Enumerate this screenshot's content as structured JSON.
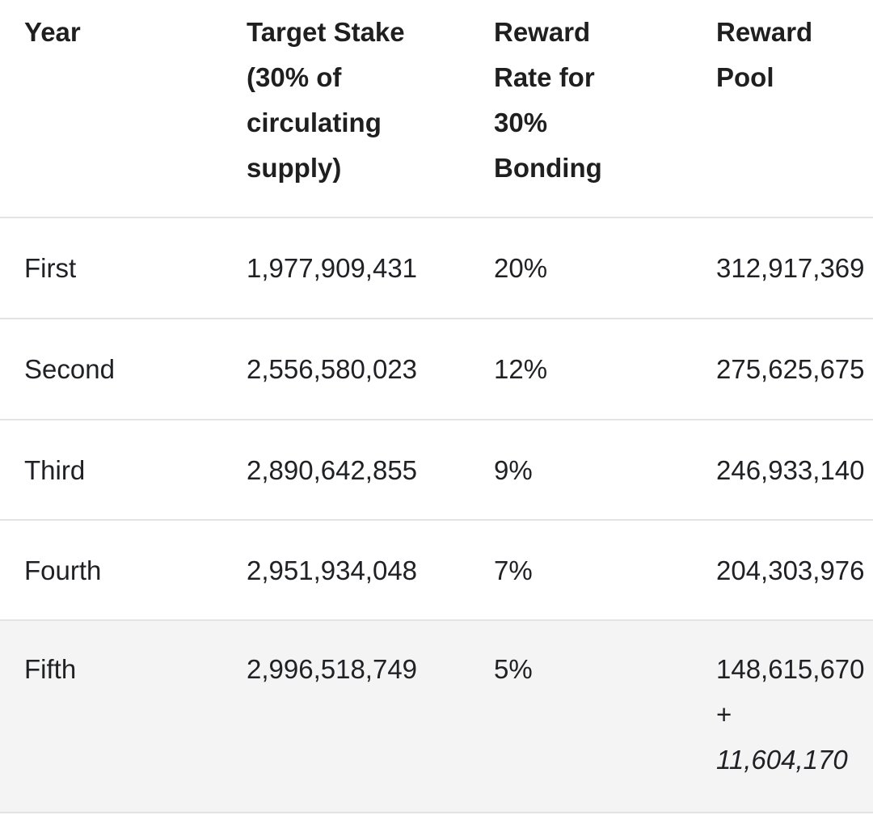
{
  "table": {
    "headers": [
      [
        "Year"
      ],
      [
        "Target Stake",
        "(30% of",
        "circulating",
        "supply)"
      ],
      [
        "Reward",
        "Rate for",
        "30%",
        "Bonding"
      ],
      [
        "Reward",
        "Pool"
      ]
    ],
    "rows": [
      {
        "year": "First",
        "target_stake": "1,977,909,431",
        "reward_rate": "20%",
        "reward_pool": "312,917,369"
      },
      {
        "year": "Second",
        "target_stake": "2,556,580,023",
        "reward_rate": "12%",
        "reward_pool": "275,625,675"
      },
      {
        "year": "Third",
        "target_stake": "2,890,642,855",
        "reward_rate": "9%",
        "reward_pool": "246,933,140"
      },
      {
        "year": "Fourth",
        "target_stake": "2,951,934,048",
        "reward_rate": "7%",
        "reward_pool": "204,303,976"
      },
      {
        "year": "Fifth",
        "target_stake": "2,996,518,749",
        "reward_rate": "5%",
        "reward_pool": "148,615,670",
        "reward_pool_plus": "+",
        "reward_pool_extra": "11,604,170"
      }
    ]
  }
}
